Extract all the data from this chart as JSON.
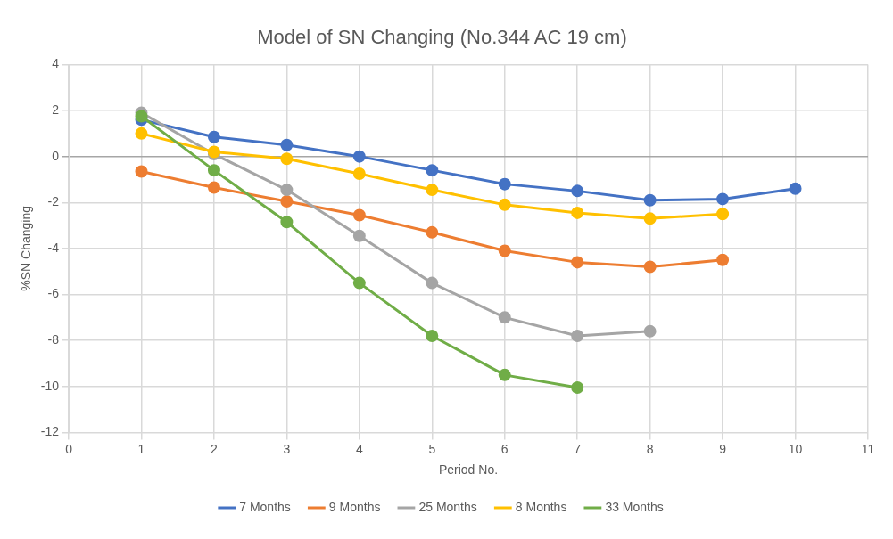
{
  "chart_data": {
    "type": "line",
    "title": "Model of SN Changing (No.344 AC 19 cm)",
    "xlabel": "Period No.",
    "ylabel": "%SN Changing",
    "xlim": [
      0,
      11
    ],
    "xticks": [
      0,
      1,
      2,
      3,
      4,
      5,
      6,
      7,
      8,
      9,
      10,
      11
    ],
    "ylim": [
      -12,
      4
    ],
    "yticks": [
      -12,
      -10,
      -8,
      -6,
      -4,
      -2,
      0,
      2,
      4
    ],
    "grid": true,
    "legend": "bottom",
    "marker": "circle",
    "line_style": "solid",
    "series": [
      {
        "name": "7 Months",
        "color": "#4472c4",
        "x": [
          1,
          2,
          3,
          4,
          5,
          6,
          7,
          8,
          9,
          10
        ],
        "values": [
          1.6,
          0.85,
          0.5,
          0,
          -0.6,
          -1.2,
          -1.5,
          -1.9,
          -1.85,
          -1.4
        ]
      },
      {
        "name": "9 Months",
        "color": "#ed7d31",
        "x": [
          1,
          2,
          3,
          4,
          5,
          6,
          7,
          8,
          9
        ],
        "values": [
          -0.65,
          -1.35,
          -1.95,
          -2.55,
          -3.3,
          -4.1,
          -4.6,
          -4.8,
          -4.5
        ]
      },
      {
        "name": "25 Months",
        "color": "#a5a5a5",
        "x": [
          1,
          2,
          3,
          4,
          5,
          6,
          7,
          8
        ],
        "values": [
          1.9,
          0.1,
          -1.45,
          -3.45,
          -5.5,
          -7.0,
          -7.8,
          -7.6
        ]
      },
      {
        "name": "8 Months",
        "color": "#ffc000",
        "x": [
          1,
          2,
          3,
          4,
          5,
          6,
          7,
          8,
          9
        ],
        "values": [
          1.0,
          0.2,
          -0.1,
          -0.75,
          -1.45,
          -2.1,
          -2.45,
          -2.7,
          -2.5
        ]
      },
      {
        "name": "33 Months",
        "color": "#70ad47",
        "x": [
          1,
          2,
          3,
          4,
          5,
          6,
          7
        ],
        "values": [
          1.75,
          -0.6,
          -2.85,
          -5.5,
          -7.8,
          -9.5,
          -10.05
        ]
      }
    ]
  }
}
